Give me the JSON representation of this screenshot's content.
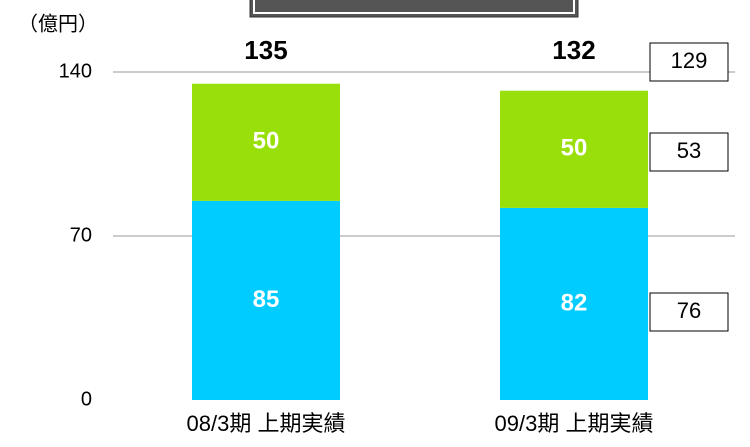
{
  "chart_data": {
    "type": "stacked_bar",
    "unit": "（億円）",
    "categories": [
      "08/3期 上期実績",
      "09/3期 上期実績"
    ],
    "series": [
      {
        "color": "#00ccff",
        "values": [
          85,
          82
        ]
      },
      {
        "color": "#99e00a",
        "values": [
          50,
          50
        ]
      }
    ],
    "totals": [
      135,
      132
    ],
    "annotations": [
      "129",
      "53",
      "76"
    ],
    "ylim": [
      0,
      140
    ],
    "yticks": [
      0,
      70,
      140
    ],
    "grid": true
  }
}
